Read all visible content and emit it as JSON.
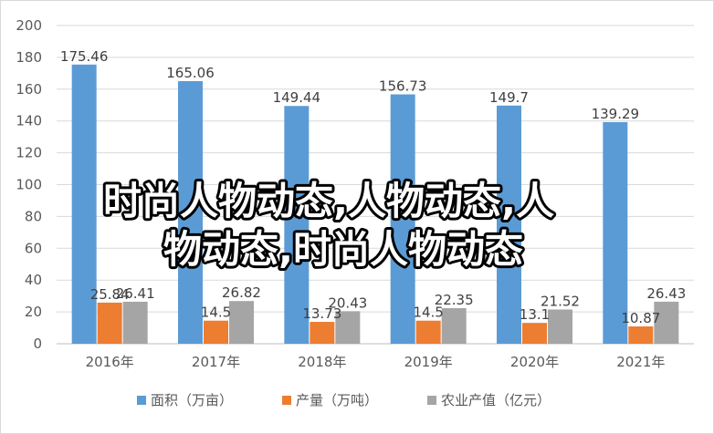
{
  "chart_data": {
    "type": "bar",
    "categories": [
      "2016年",
      "2017年",
      "2018年",
      "2019年",
      "2020年",
      "2021年"
    ],
    "series": [
      {
        "name": "面积（万亩）",
        "color": "#5b9bd5",
        "values": [
          175.46,
          165.06,
          149.44,
          156.73,
          149.7,
          139.29
        ],
        "labels": [
          "175.46",
          "165.06",
          "149.44",
          "156.73",
          "149.7",
          "139.29"
        ]
      },
      {
        "name": "产量（万吨）",
        "color": "#ed7d31",
        "values": [
          25.84,
          14.5,
          13.73,
          14.5,
          13.1,
          10.87
        ],
        "labels": [
          "25.84",
          "14.5",
          "13.73",
          "14.5",
          "13.1",
          "10.87"
        ]
      },
      {
        "name": "农业产值（亿元）",
        "color": "#a5a5a5",
        "values": [
          26.41,
          26.82,
          20.43,
          22.35,
          21.52,
          26.43
        ],
        "labels": [
          "26.41",
          "26.82",
          "20.43",
          "22.35",
          "21.52",
          "26.43"
        ]
      }
    ],
    "ylim": [
      0,
      200
    ],
    "yticks": [
      0,
      20,
      40,
      60,
      80,
      100,
      120,
      140,
      160,
      180,
      200
    ],
    "grid": true,
    "legend_position": "bottom"
  },
  "watermark": {
    "line1": "时尚人物动态,人物动态,人",
    "line2": "物动态,时尚人物动态"
  }
}
